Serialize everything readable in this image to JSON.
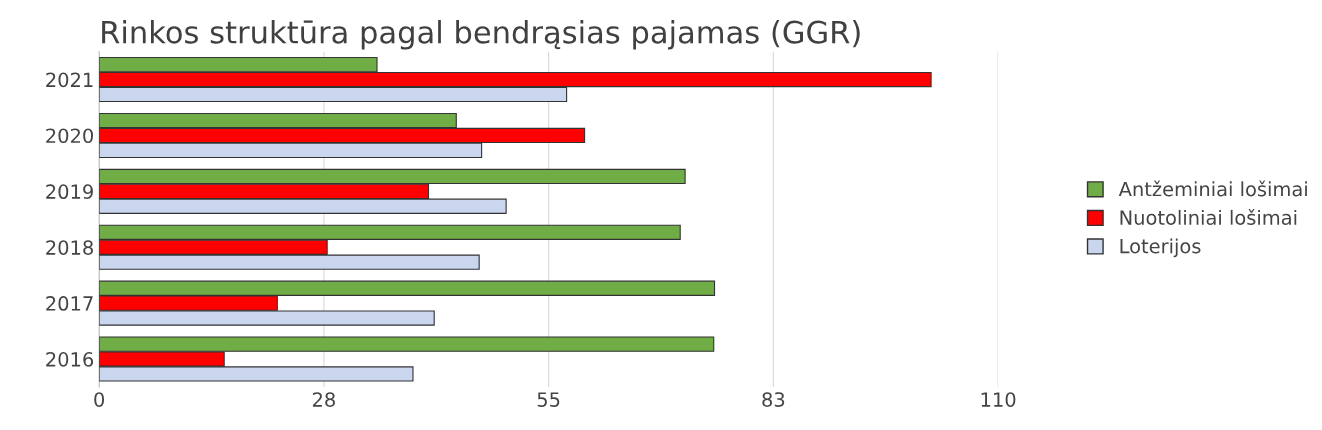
{
  "chart_data": {
    "type": "bar",
    "orientation": "horizontal",
    "title": "Rinkos struktūra pagal bendrąsias pajamas (GGR)",
    "categories": [
      "2021",
      "2020",
      "2019",
      "2018",
      "2017",
      "2016"
    ],
    "series": [
      {
        "name": "Antžeminiai lošimai",
        "color": "#70ad47",
        "values": [
          34.0,
          43.7,
          71.7,
          71.1,
          75.3,
          75.2
        ]
      },
      {
        "name": "Nuotoliniai lošimai",
        "color": "#ff0000",
        "values": [
          101.8,
          59.4,
          40.3,
          27.9,
          21.8,
          15.3
        ]
      },
      {
        "name": "Loterijos",
        "color": "#c9d6ee",
        "values": [
          57.2,
          46.8,
          49.8,
          46.5,
          41.0,
          38.4
        ]
      }
    ],
    "xlim": [
      0,
      110
    ],
    "xticks": [
      0,
      {
        "value": 27.5,
        "label": "28"
      },
      55,
      {
        "value": 82.5,
        "label": "83"
      },
      110
    ],
    "grid": "x",
    "legend": "right"
  }
}
